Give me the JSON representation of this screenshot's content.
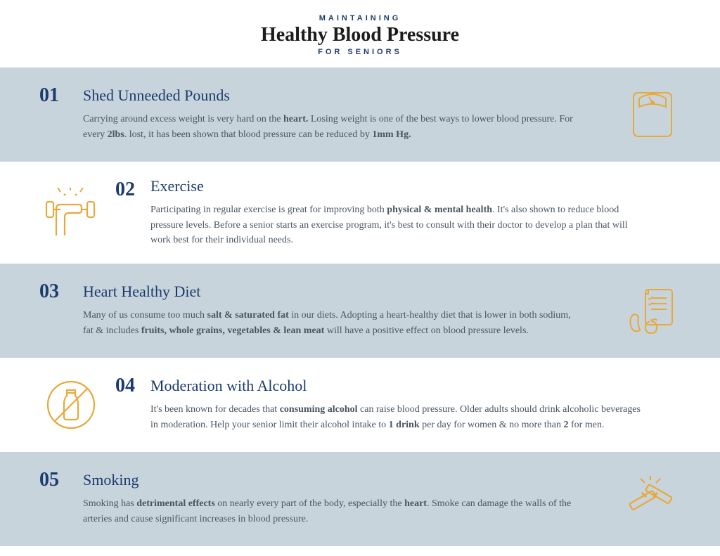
{
  "header": {
    "eyebrow": "MAINTAINING",
    "title": "Healthy Blood Pressure",
    "subtitle": "FOR SENIORS"
  },
  "colors": {
    "accent_navy": "#1c3b6e",
    "icon_gold": "#e8a93c",
    "band_bg": "#c8d4db",
    "body_text": "#4a5560",
    "title_black": "#1c1c1c"
  },
  "sections": [
    {
      "num": "01",
      "title": "Shed Unneeded Pounds",
      "body_html": "Carrying around excess weight is very hard on the <b>heart.</b> Losing weight is one of the best ways to lower blood pressure. For every <b>2lbs</b>. lost, it has been shown that blood pressure can be reduced by <b>1mm Hg.</b>",
      "layout": "icon-right",
      "band": true,
      "icon": "scale"
    },
    {
      "num": "02",
      "title": "Exercise",
      "body_html": "Participating in regular exercise is great for improving both <b>physical & mental health</b>. It's also shown to reduce blood pressure levels. Before a senior starts an exercise program, it's best to consult with their doctor to develop a plan that will work best for their individual needs.",
      "layout": "icon-left",
      "band": false,
      "icon": "dumbbell"
    },
    {
      "num": "03",
      "title": "Heart Healthy Diet",
      "body_html": "Many of us consume too much <b>salt  & saturated fat</b> in our diets. Adopting a heart-healthy diet that is lower in both sodium, fat & includes <b>fruits, whole grains, vegetables & lean meat</b> will have a positive effect on blood pressure levels.",
      "layout": "icon-right",
      "band": true,
      "icon": "diet"
    },
    {
      "num": "04",
      "title": "Moderation with Alcohol",
      "body_html": "It's been known for decades that <b>consuming alcohol</b> can raise blood pressure. Older adults should drink alcoholic beverages in moderation. Help your senior limit their alcohol intake to <b>1 drink</b> per day for women & no more than <b>2</b> for men.",
      "layout": "icon-left",
      "band": false,
      "icon": "no-alcohol"
    },
    {
      "num": "05",
      "title": "Smoking",
      "body_html": "Smoking has <b>detrimental effects</b> on nearly every part of the body, especially the <b>heart</b>. Smoke can damage the walls of the arteries and cause significant increases in blood pressure.",
      "layout": "icon-right",
      "band": true,
      "icon": "no-smoking"
    }
  ]
}
